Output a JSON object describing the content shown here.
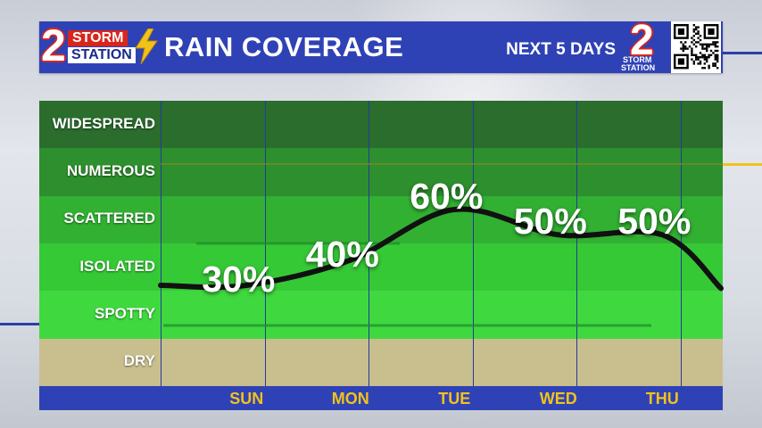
{
  "header": {
    "title": "RAIN COVERAGE",
    "subtitle": "NEXT 5 DAYS",
    "logo_left": {
      "number": "2",
      "line1": "STORM",
      "line2": "STATION"
    },
    "logo_right": {
      "number": "2",
      "line1": "STORM",
      "line2": "STATION"
    },
    "qr_icon": "qr-code-icon"
  },
  "colors": {
    "header_blue": "#2f42b5",
    "accent_yellow": "#f2c21b",
    "logo_red": "#d9261c",
    "curve": "#111111"
  },
  "chart_data": {
    "type": "line",
    "title": "RAIN COVERAGE",
    "subtitle": "NEXT 5 DAYS",
    "categories": [
      "SUN",
      "MON",
      "TUE",
      "WED",
      "THU"
    ],
    "y_categories": [
      "DRY",
      "SPOTTY",
      "ISOLATED",
      "SCATTERED",
      "NUMEROUS",
      "WIDESPREAD"
    ],
    "band_colors": [
      "#c9bf8e",
      "#3fd93f",
      "#36c936",
      "#32b032",
      "#2d8f2d",
      "#2a6d2d"
    ],
    "series": [
      {
        "values": [
          30,
          40,
          60,
          50,
          50
        ]
      }
    ],
    "labels": [
      "30%",
      "40%",
      "60%",
      "50%",
      "50%"
    ],
    "grid": true,
    "legend": "none"
  }
}
